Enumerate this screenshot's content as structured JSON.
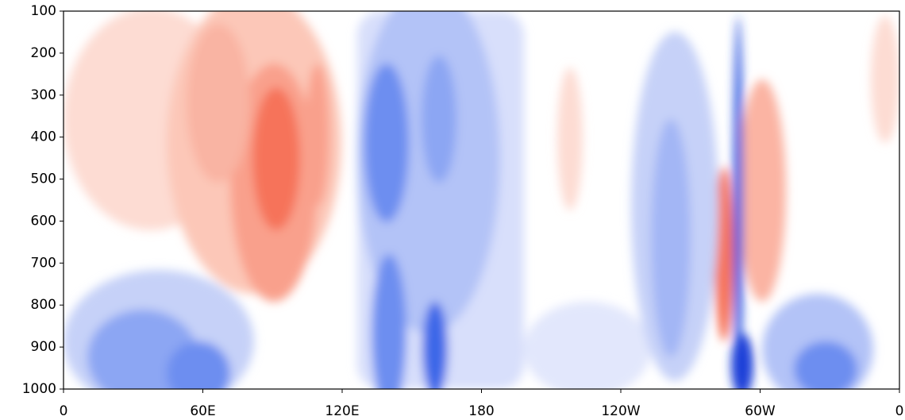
{
  "chart_data": {
    "type": "contour",
    "xlim": [
      0,
      360
    ],
    "xticks": [
      0,
      {
        "value": 60,
        "label": "60E"
      },
      {
        "value": 120,
        "label": "120E"
      },
      180,
      {
        "value": 240,
        "label": "120W"
      },
      {
        "value": 300,
        "label": "60W"
      },
      {
        "value": 360,
        "label": "0"
      }
    ],
    "ylim": [
      1000,
      100
    ],
    "yticks": [
      100,
      200,
      300,
      400,
      500,
      600,
      700,
      800,
      900,
      1000
    ]
  }
}
